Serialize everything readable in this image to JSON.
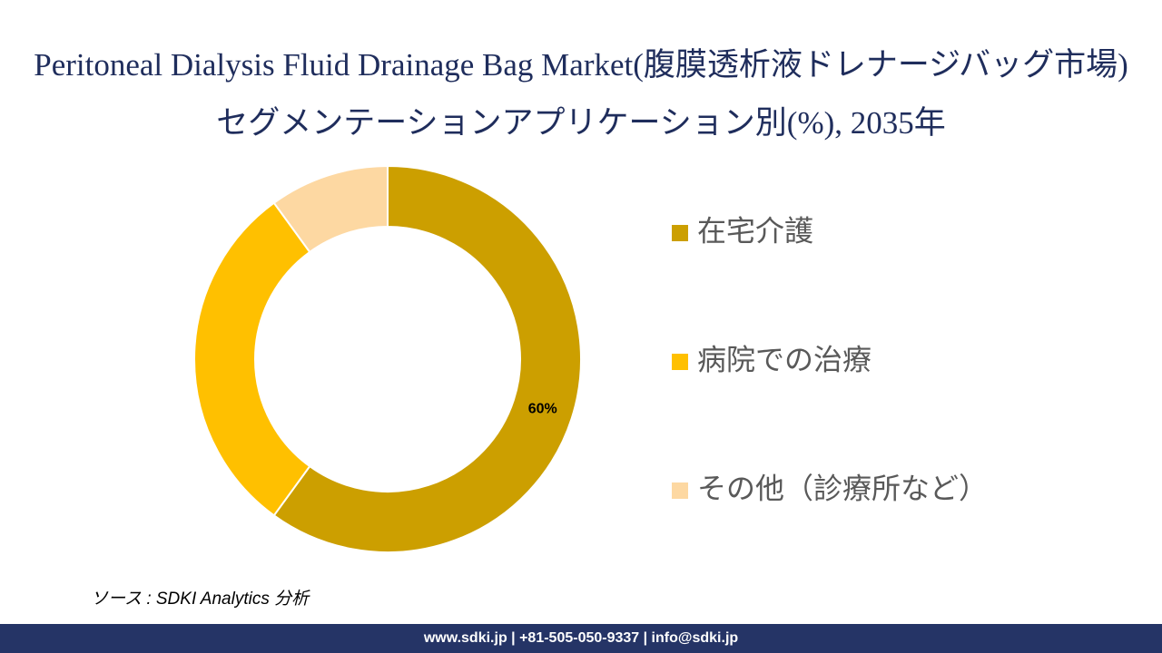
{
  "chart_data": {
    "type": "donut",
    "title": "Peritoneal Dialysis Fluid Drainage Bag Market(腹膜透析液ドレナージバッグ市場)セグメンテーションアプリケーション別(%), 2035年",
    "categories": [
      "在宅介護",
      "病院での治療",
      "その他（診療所など）"
    ],
    "values": [
      60,
      30,
      10
    ],
    "value_labels": [
      "60%",
      null,
      null
    ],
    "colors": [
      "#cc9f00",
      "#ffc000",
      "#fdd8a2"
    ],
    "legend": "right"
  },
  "source": "ソース : SDKI Analytics 分析",
  "footer": "www.sdki.jp | +81-505-050-9337 | info@sdki.jp"
}
